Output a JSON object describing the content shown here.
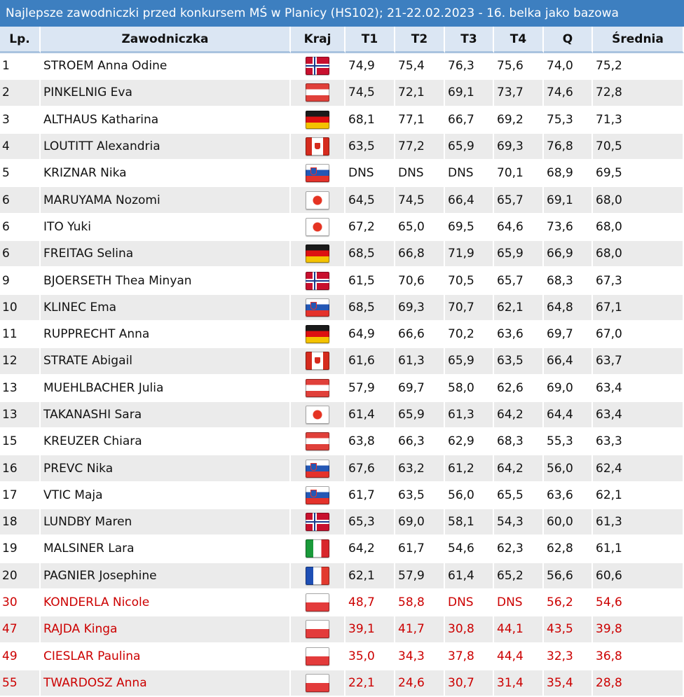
{
  "title": "Najlepsze zawodniczki przed konkursem MŚ w Planicy (HS102); 21-22.02.2023 - 16. belka jako bazowa",
  "headers": [
    "Lp.",
    "Zawodniczka",
    "Kraj",
    "T1",
    "T2",
    "T3",
    "T4",
    "Q",
    "Średnia"
  ],
  "rows": [
    {
      "lp": "1",
      "name": "STROEM Anna Odine",
      "flag": "nor-flag-icon",
      "t1": "74,9",
      "t2": "75,4",
      "t3": "76,3",
      "t4": "75,6",
      "q": "74,0",
      "avg": "75,2"
    },
    {
      "lp": "2",
      "name": "PINKELNIG Eva",
      "flag": "aut-flag-icon",
      "t1": "74,5",
      "t2": "72,1",
      "t3": "69,1",
      "t4": "73,7",
      "q": "74,6",
      "avg": "72,8"
    },
    {
      "lp": "3",
      "name": "ALTHAUS Katharina",
      "flag": "ger-flag-icon",
      "t1": "68,1",
      "t2": "77,1",
      "t3": "66,7",
      "t4": "69,2",
      "q": "75,3",
      "avg": "71,3"
    },
    {
      "lp": "4",
      "name": "LOUTITT Alexandria",
      "flag": "can-flag-icon",
      "t1": "63,5",
      "t2": "77,2",
      "t3": "65,9",
      "t4": "69,3",
      "q": "76,8",
      "avg": "70,5"
    },
    {
      "lp": "5",
      "name": "KRIZNAR Nika",
      "flag": "slo-flag-icon",
      "t1": "DNS",
      "t2": "DNS",
      "t3": "DNS",
      "t4": "70,1",
      "q": "68,9",
      "avg": "69,5"
    },
    {
      "lp": "6",
      "name": "MARUYAMA Nozomi",
      "flag": "jpn-flag-icon",
      "t1": "64,5",
      "t2": "74,5",
      "t3": "66,4",
      "t4": "65,7",
      "q": "69,1",
      "avg": "68,0"
    },
    {
      "lp": "6",
      "name": "ITO Yuki",
      "flag": "jpn-flag-icon",
      "t1": "67,2",
      "t2": "65,0",
      "t3": "69,5",
      "t4": "64,6",
      "q": "73,6",
      "avg": "68,0"
    },
    {
      "lp": "6",
      "name": "FREITAG Selina",
      "flag": "ger-flag-icon",
      "t1": "68,5",
      "t2": "66,8",
      "t3": "71,9",
      "t4": "65,9",
      "q": "66,9",
      "avg": "68,0"
    },
    {
      "lp": "9",
      "name": "BJOERSETH Thea Minyan",
      "flag": "nor-flag-icon",
      "t1": "61,5",
      "t2": "70,6",
      "t3": "70,5",
      "t4": "65,7",
      "q": "68,3",
      "avg": "67,3"
    },
    {
      "lp": "10",
      "name": "KLINEC Ema",
      "flag": "slo-flag-icon",
      "t1": "68,5",
      "t2": "69,3",
      "t3": "70,7",
      "t4": "62,1",
      "q": "64,8",
      "avg": "67,1"
    },
    {
      "lp": "11",
      "name": "RUPPRECHT Anna",
      "flag": "ger-flag-icon",
      "t1": "64,9",
      "t2": "66,6",
      "t3": "70,2",
      "t4": "63,6",
      "q": "69,7",
      "avg": "67,0"
    },
    {
      "lp": "12",
      "name": "STRATE Abigail",
      "flag": "can-flag-icon",
      "t1": "61,6",
      "t2": "61,3",
      "t3": "65,9",
      "t4": "63,5",
      "q": "66,4",
      "avg": "63,7"
    },
    {
      "lp": "13",
      "name": "MUEHLBACHER Julia",
      "flag": "aut-flag-icon",
      "t1": "57,9",
      "t2": "69,7",
      "t3": "58,0",
      "t4": "62,6",
      "q": "69,0",
      "avg": "63,4"
    },
    {
      "lp": "13",
      "name": "TAKANASHI Sara",
      "flag": "jpn-flag-icon",
      "t1": "61,4",
      "t2": "65,9",
      "t3": "61,3",
      "t4": "64,2",
      "q": "64,4",
      "avg": "63,4"
    },
    {
      "lp": "15",
      "name": "KREUZER Chiara",
      "flag": "aut-flag-icon",
      "t1": "63,8",
      "t2": "66,3",
      "t3": "62,9",
      "t4": "68,3",
      "q": "55,3",
      "avg": "63,3"
    },
    {
      "lp": "16",
      "name": "PREVC Nika",
      "flag": "slo-flag-icon",
      "t1": "67,6",
      "t2": "63,2",
      "t3": "61,2",
      "t4": "64,2",
      "q": "56,0",
      "avg": "62,4"
    },
    {
      "lp": "17",
      "name": "VTIC Maja",
      "flag": "slo-flag-icon",
      "t1": "61,7",
      "t2": "63,5",
      "t3": "56,0",
      "t4": "65,5",
      "q": "63,6",
      "avg": "62,1"
    },
    {
      "lp": "18",
      "name": "LUNDBY Maren",
      "flag": "nor-flag-icon",
      "t1": "65,3",
      "t2": "69,0",
      "t3": "58,1",
      "t4": "54,3",
      "q": "60,0",
      "avg": "61,3"
    },
    {
      "lp": "19",
      "name": "MALSINER Lara",
      "flag": "ita-flag-icon",
      "t1": "64,2",
      "t2": "61,7",
      "t3": "54,6",
      "t4": "62,3",
      "q": "62,8",
      "avg": "61,1"
    },
    {
      "lp": "20",
      "name": "PAGNIER Josephine",
      "flag": "fra-flag-icon",
      "t1": "62,1",
      "t2": "57,9",
      "t3": "61,4",
      "t4": "65,2",
      "q": "56,6",
      "avg": "60,6"
    },
    {
      "lp": "30",
      "name": "KONDERLA Nicole",
      "flag": "pol-flag-icon",
      "t1": "48,7",
      "t2": "58,8",
      "t3": "DNS",
      "t4": "DNS",
      "q": "56,2",
      "avg": "54,6",
      "highlight": true
    },
    {
      "lp": "47",
      "name": "RAJDA Kinga",
      "flag": "pol-flag-icon",
      "t1": "39,1",
      "t2": "41,7",
      "t3": "30,8",
      "t4": "44,1",
      "q": "43,5",
      "avg": "39,8",
      "highlight": true
    },
    {
      "lp": "49",
      "name": "CIESLAR Paulina",
      "flag": "pol-flag-icon",
      "t1": "35,0",
      "t2": "34,3",
      "t3": "37,8",
      "t4": "44,4",
      "q": "32,3",
      "avg": "36,8",
      "highlight": true
    },
    {
      "lp": "55",
      "name": "TWARDOSZ Anna",
      "flag": "pol-flag-icon",
      "t1": "22,1",
      "t2": "24,6",
      "t3": "30,7",
      "t4": "31,4",
      "q": "35,4",
      "avg": "28,8",
      "highlight": true
    }
  ],
  "colors": {
    "title_bg": "#3d7fc0",
    "header_bg": "#dbe6f3",
    "alt_row": "#ebebeb",
    "highlight_text": "#cc0000"
  }
}
